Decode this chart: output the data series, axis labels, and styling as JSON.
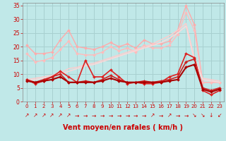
{
  "background_color": "#c0e8e8",
  "grid_color": "#a8d0d0",
  "xlabel": "Vent moyen/en rafales ( km/h )",
  "xlim": [
    -0.5,
    23.5
  ],
  "ylim": [
    0,
    36
  ],
  "yticks": [
    0,
    5,
    10,
    15,
    20,
    25,
    30,
    35
  ],
  "xticks": [
    0,
    1,
    2,
    3,
    4,
    5,
    6,
    7,
    8,
    9,
    10,
    11,
    12,
    13,
    14,
    15,
    16,
    17,
    18,
    19,
    20,
    21,
    22,
    23
  ],
  "lines": [
    {
      "color": "#ffaaaa",
      "lw": 1.0,
      "marker": "D",
      "ms": 2.0,
      "data_y": [
        20.5,
        17.5,
        17.5,
        18.0,
        22.5,
        26.0,
        20.0,
        19.5,
        19.0,
        20.0,
        21.5,
        20.0,
        21.0,
        19.5,
        22.5,
        21.0,
        21.0,
        22.0,
        26.0,
        35.0,
        28.0,
        7.0,
        7.0,
        7.0
      ]
    },
    {
      "color": "#ffbbbb",
      "lw": 1.0,
      "marker": "D",
      "ms": 2.0,
      "data_y": [
        17.5,
        14.5,
        15.0,
        16.0,
        19.0,
        22.0,
        17.5,
        17.0,
        17.0,
        18.0,
        20.0,
        18.5,
        19.5,
        18.0,
        20.5,
        19.5,
        19.5,
        20.5,
        24.5,
        32.5,
        26.0,
        7.0,
        7.0,
        7.0
      ]
    },
    {
      "color": "#ffcccc",
      "lw": 1.0,
      "marker": null,
      "ms": 0,
      "data_y": [
        8.0,
        8.5,
        9.0,
        9.5,
        10.5,
        12.0,
        12.5,
        13.5,
        14.0,
        15.0,
        16.0,
        17.0,
        18.0,
        19.0,
        20.0,
        21.0,
        22.5,
        24.0,
        26.0,
        28.5,
        16.0,
        8.5,
        8.0,
        7.5
      ]
    },
    {
      "color": "#ffd8d8",
      "lw": 1.0,
      "marker": null,
      "ms": 0,
      "data_y": [
        7.5,
        8.0,
        8.5,
        9.0,
        10.0,
        11.0,
        12.0,
        13.0,
        13.5,
        14.5,
        15.5,
        16.5,
        17.5,
        18.5,
        19.5,
        20.5,
        21.5,
        23.0,
        25.0,
        27.5,
        15.0,
        8.0,
        7.5,
        7.0
      ]
    },
    {
      "color": "#dd2222",
      "lw": 1.2,
      "marker": "D",
      "ms": 2.0,
      "data_y": [
        8.0,
        6.5,
        7.5,
        9.0,
        11.0,
        9.0,
        7.0,
        15.0,
        9.0,
        9.0,
        11.5,
        9.0,
        6.5,
        7.0,
        6.5,
        6.5,
        7.0,
        9.0,
        10.0,
        17.5,
        16.0,
        4.0,
        2.5,
        4.0
      ]
    },
    {
      "color": "#cc2222",
      "lw": 1.2,
      "marker": "D",
      "ms": 2.0,
      "data_y": [
        8.0,
        7.0,
        8.0,
        9.0,
        10.0,
        7.0,
        7.0,
        7.5,
        7.0,
        8.0,
        9.5,
        8.0,
        7.0,
        7.0,
        7.5,
        7.0,
        7.5,
        8.0,
        9.0,
        14.5,
        15.5,
        5.0,
        4.0,
        5.0
      ]
    },
    {
      "color": "#aa0000",
      "lw": 1.5,
      "marker": "D",
      "ms": 2.0,
      "data_y": [
        7.5,
        7.0,
        7.5,
        8.0,
        9.0,
        7.0,
        7.0,
        7.0,
        7.0,
        7.5,
        8.5,
        7.5,
        7.0,
        7.0,
        7.0,
        7.0,
        7.0,
        7.5,
        8.0,
        12.5,
        13.5,
        4.5,
        3.5,
        4.5
      ]
    }
  ],
  "arrows": [
    "↗",
    "↗",
    "↗",
    "↗",
    "↗",
    "↗",
    "→",
    "→",
    "→",
    "→",
    "→",
    "→",
    "→",
    "→",
    "→",
    "↗",
    "→",
    "↗",
    "→",
    "→",
    "↘",
    "↘",
    "↓",
    "↙"
  ],
  "xlabel_color": "#cc0000",
  "tick_color": "#cc0000",
  "arrow_color": "#cc0000",
  "spine_color": "#888888"
}
